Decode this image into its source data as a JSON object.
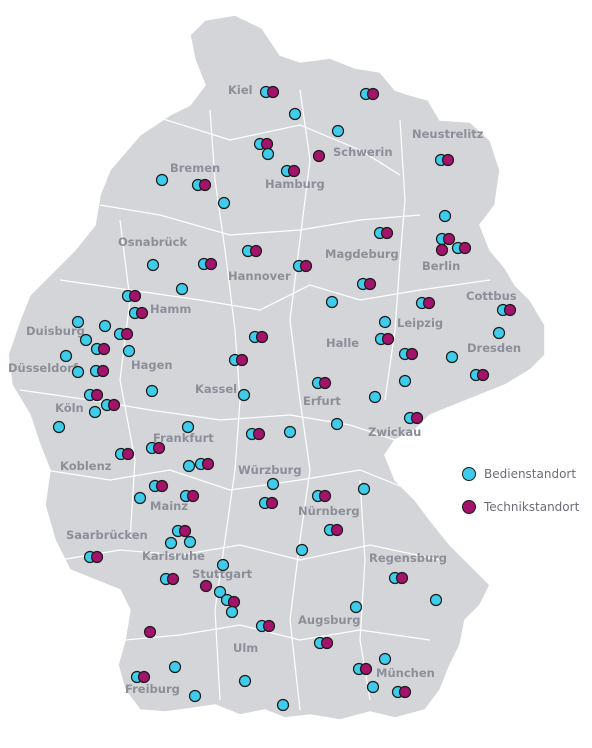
{
  "colors": {
    "land": "#d4d5d9",
    "border": "#ffffff",
    "bedien": "#3fcbea",
    "technik": "#a3126b",
    "label": "#8c8f99",
    "outline": "#1a1a1a"
  },
  "legend": {
    "bedien": "Bedienstandort",
    "technik": "Technikstandort"
  },
  "cities": [
    "Kiel",
    "Schwerin",
    "Neustrelitz",
    "Bremen",
    "Hamburg",
    "Osnabrück",
    "Hannover",
    "Magdeburg",
    "Berlin",
    "Cottbus",
    "Hamm",
    "Duisburg",
    "Düsseldorf",
    "Hagen",
    "Halle",
    "Leipzig",
    "Dresden",
    "Kassel",
    "Erfurt",
    "Köln",
    "Zwickau",
    "Frankfurt",
    "Koblenz",
    "Würzburg",
    "Mainz",
    "Nürnberg",
    "Saarbrücken",
    "Karlsruhe",
    "Regensburg",
    "Stuttgart",
    "Augsburg",
    "Ulm",
    "München",
    "Freiburg"
  ]
}
